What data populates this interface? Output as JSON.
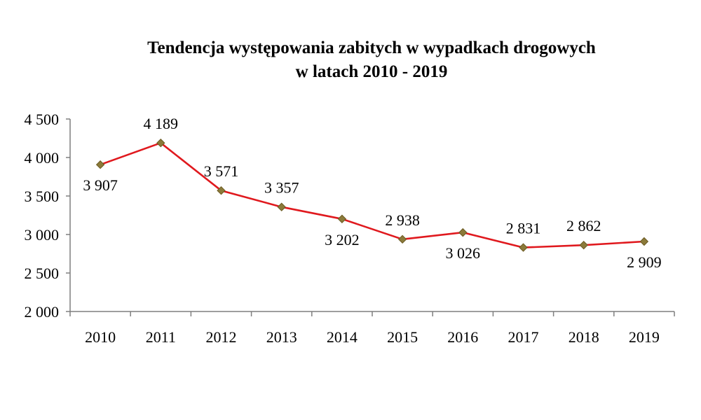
{
  "chart_data": {
    "type": "line",
    "title_lines": [
      "Tendencja  występowania zabitych w wypadkach drogowych",
      "w latach 2010 - 2019"
    ],
    "xlabel": "",
    "ylabel": "",
    "categories": [
      "2010",
      "2011",
      "2012",
      "2013",
      "2014",
      "2015",
      "2016",
      "2017",
      "2018",
      "2019"
    ],
    "values": [
      3907,
      4189,
      3571,
      3357,
      3202,
      2938,
      3026,
      2831,
      2862,
      2909
    ],
    "data_labels": [
      "3 907",
      "4 189",
      "3 571",
      "3 357",
      "3 202",
      "2 938",
      "3 026",
      "2 831",
      "2 862",
      "2 909"
    ],
    "data_label_positions": [
      "below",
      "above",
      "above",
      "above",
      "below",
      "above",
      "below",
      "above",
      "above",
      "below"
    ],
    "ylim": [
      2000,
      4500
    ],
    "yticks": [
      2000,
      2500,
      3000,
      3500,
      4000,
      4500
    ],
    "ytick_labels": [
      "2 000",
      "2 500",
      "3 000",
      "3 500",
      "4 000",
      "4 500"
    ],
    "grid": false,
    "legend": "none",
    "colors": {
      "line": "#e0191e",
      "marker": "#8b7a3a",
      "marker_stroke": "#6b5a22",
      "axis": "#7f7f7f"
    }
  }
}
